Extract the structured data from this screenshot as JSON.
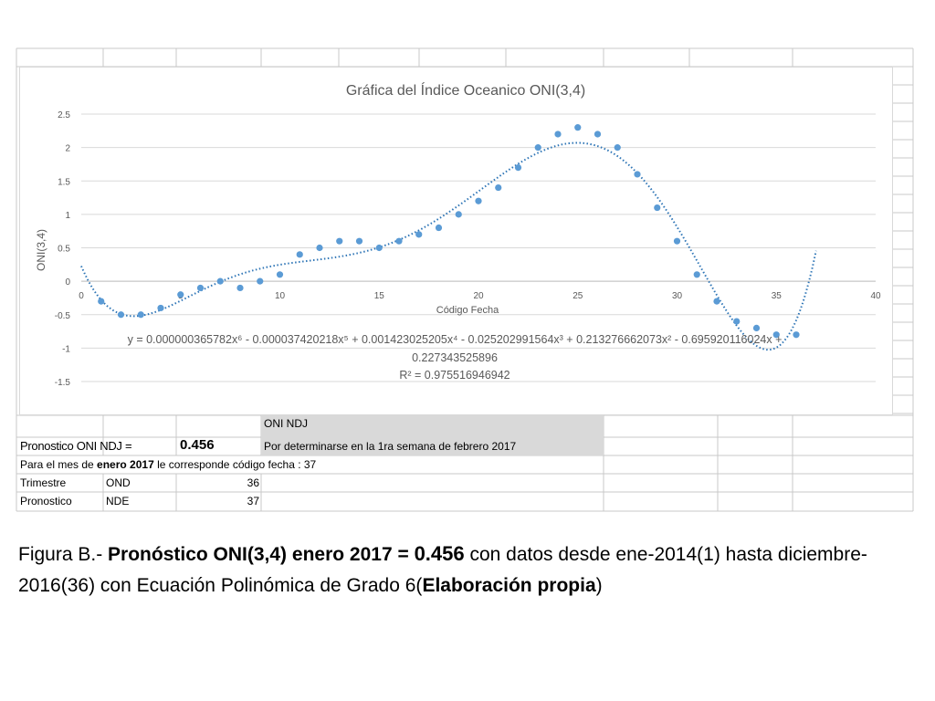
{
  "chart_data": {
    "type": "scatter",
    "title": "Gráfica del Índice Oceanico ONI(3,4)",
    "xlabel": "Código Fecha",
    "ylabel": "ONI(3,4)",
    "xlim": [
      0,
      40
    ],
    "ylim": [
      -1.5,
      2.5
    ],
    "x_ticks": [
      0,
      5,
      10,
      15,
      20,
      25,
      30,
      35,
      40
    ],
    "y_ticks": [
      -1.5,
      -1,
      -0.5,
      0,
      0.5,
      1,
      1.5,
      2,
      2.5
    ],
    "grid": "horizontal",
    "point_color": "#5B9BD5",
    "trend_color": "#2E75B6",
    "points": [
      [
        1,
        -0.3
      ],
      [
        2,
        -0.5
      ],
      [
        3,
        -0.5
      ],
      [
        4,
        -0.4
      ],
      [
        5,
        -0.2
      ],
      [
        6,
        -0.1
      ],
      [
        7,
        0.0
      ],
      [
        8,
        -0.1
      ],
      [
        9,
        0.0
      ],
      [
        10,
        0.1
      ],
      [
        11,
        0.4
      ],
      [
        12,
        0.5
      ],
      [
        13,
        0.6
      ],
      [
        14,
        0.6
      ],
      [
        15,
        0.5
      ],
      [
        16,
        0.6
      ],
      [
        17,
        0.7
      ],
      [
        18,
        0.8
      ],
      [
        19,
        1.0
      ],
      [
        20,
        1.2
      ],
      [
        21,
        1.4
      ],
      [
        22,
        1.7
      ],
      [
        23,
        2.0
      ],
      [
        24,
        2.2
      ],
      [
        25,
        2.3
      ],
      [
        26,
        2.2
      ],
      [
        27,
        2.0
      ],
      [
        28,
        1.6
      ],
      [
        29,
        1.1
      ],
      [
        30,
        0.6
      ],
      [
        31,
        0.1
      ],
      [
        32,
        -0.3
      ],
      [
        33,
        -0.6
      ],
      [
        34,
        -0.7
      ],
      [
        35,
        -0.8
      ],
      [
        36,
        -0.8
      ]
    ],
    "trendline": {
      "type": "polynomial",
      "order": 6,
      "coefficients": [
        0.227343525896,
        -0.695920116024,
        0.213276662073,
        -0.025202991564,
        0.001423025205,
        -3.7420218e-05,
        3.65782e-07
      ],
      "x_range": [
        0,
        37
      ],
      "equation_lines": [
        "y = 0.000000365782x⁶ - 0.000037420218x⁵ + 0.001423025205x⁴ - 0.025202991564x³ + 0.213276662073x² - 0.695920116024x +",
        "0.227343525896"
      ],
      "r2": "R² = 0.975516946942"
    }
  },
  "table": {
    "oni_ndj_header": "ONI NDJ",
    "pronostico_label": "Pronostico ONI NDJ =",
    "pronostico_value": "0.456",
    "por_determinarse": "Por determinarse en la 1ra semana de febrero 2017",
    "mes_line_a": "Para el mes de ",
    "mes_line_bold": "enero 2017",
    "mes_line_b": " le corresponde código fecha : 37",
    "rows": [
      {
        "label": "Trimestre",
        "code": "OND",
        "value": "36"
      },
      {
        "label": "Pronostico",
        "code": "NDE",
        "value": "37"
      }
    ],
    "header_fill": "#D9D9D9"
  },
  "caption": {
    "lead": "Figura B.- ",
    "bold1": "Pronóstico ONI(3,4) enero 2017 = ",
    "value": "0.456",
    "rest": " con datos desde ene-2014(1) hasta diciembre-2016(36) con Ecuación Polinómica de Grado 6(",
    "bold2": "Elaboración propia",
    "end": ")"
  }
}
